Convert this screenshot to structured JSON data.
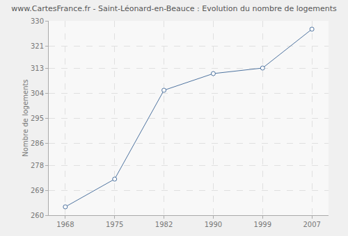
{
  "chart_data": {
    "type": "line",
    "title": "www.CartesFrance.fr - Saint-Léonard-en-Beauce : Evolution du nombre de logements",
    "y_label": "Nombre de logements",
    "categories": [
      "1968",
      "1975",
      "1982",
      "1990",
      "1999",
      "2007"
    ],
    "values": [
      263,
      273,
      305,
      311,
      313,
      327
    ],
    "color": "#4f74a0",
    "marker": "circle",
    "line_style": "solid",
    "ylim": [
      260,
      330
    ],
    "yticks": [
      260,
      269,
      278,
      286,
      295,
      304,
      313,
      321,
      330
    ],
    "grid": true
  }
}
